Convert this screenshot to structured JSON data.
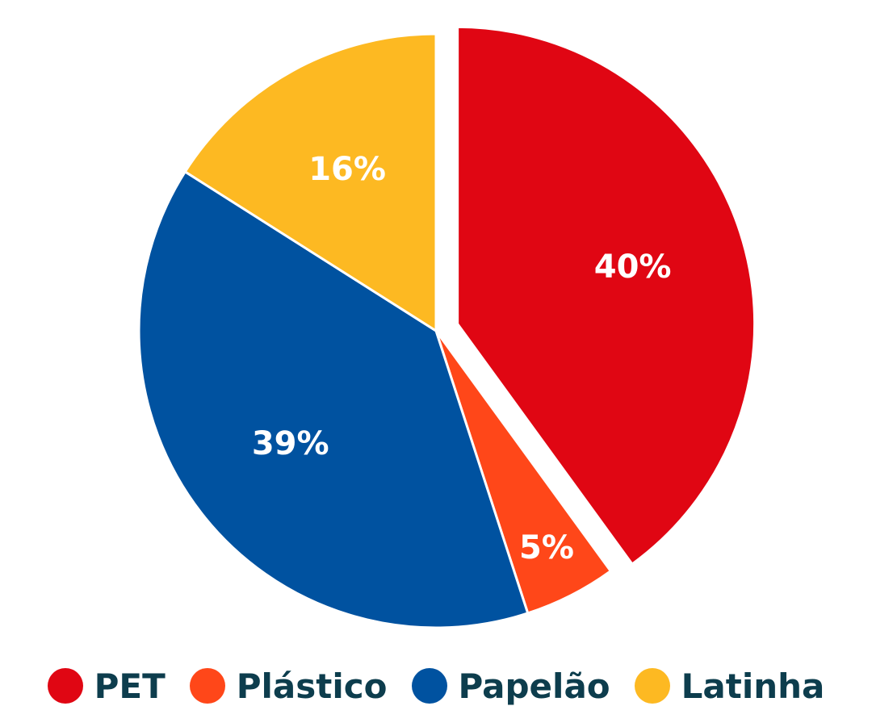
{
  "chart_data": {
    "type": "pie",
    "title": "",
    "slices": [
      {
        "name": "PET",
        "value": 40,
        "label": "40%",
        "color": "#e00613",
        "exploded": true
      },
      {
        "name": "Plástico",
        "value": 5,
        "label": "5%",
        "color": "#ff4719",
        "exploded": false
      },
      {
        "name": "Papelão",
        "value": 39,
        "label": "39%",
        "color": "#0052a0",
        "exploded": false
      },
      {
        "name": "Latinha",
        "value": 16,
        "label": "16%",
        "color": "#fdb922",
        "exploded": false
      }
    ],
    "start_angle_deg": 0,
    "direction": "clockwise",
    "legend_position": "bottom"
  },
  "colors": {
    "legend_text": "#0d3d4d",
    "slice_border": "#ffffff"
  }
}
